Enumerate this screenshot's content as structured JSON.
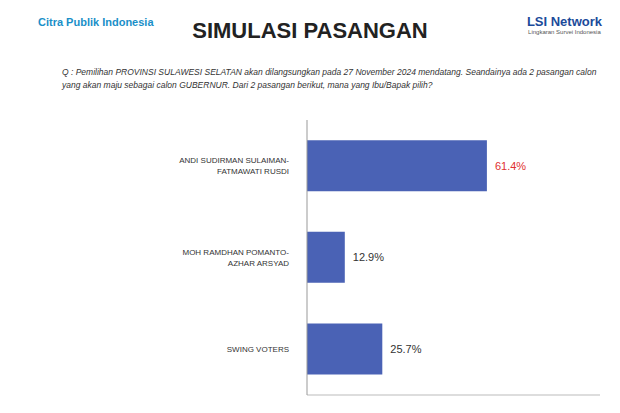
{
  "header": {
    "title": "SIMULASI PASANGAN",
    "left_logo": "Citra Publik Indonesia",
    "right_logo": "LSI Network",
    "right_logo_subtitle": "Lingkaran Survei Indonesia",
    "question": "Q : Pemilihan PROVINSI SULAWESI SELATAN akan dilangsungkan pada 27 November 2024 mendatang. Seandainya ada 2 pasangan calon yang akan maju sebagai calon GUBERNUR. Dari 2 pasangan berikut, mana yang Ibu/Bapak pilih?"
  },
  "chart_data": {
    "type": "bar",
    "orientation": "horizontal",
    "categories": [
      "ANDI SUDIRMAN SULAIMAN-FATMAWATI RUSDI",
      "MOH RAMDHAN POMANTO-AZHAR ARSYAD",
      "SWING VOTERS"
    ],
    "values": [
      61.4,
      12.9,
      25.7
    ],
    "value_labels": [
      "61.4%",
      "12.9%",
      "25.7%"
    ],
    "color": "#4a62b5",
    "xlim": [
      0,
      100
    ],
    "data_labels": true,
    "tick_labels": "y",
    "grid": false
  }
}
